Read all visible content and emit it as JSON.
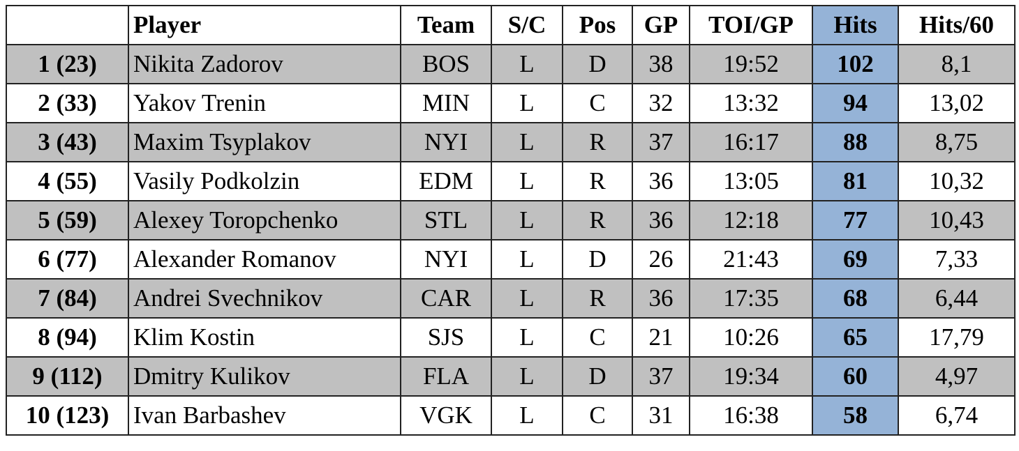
{
  "table": {
    "header": [
      "",
      "Player",
      "Team",
      "S/C",
      "Pos",
      "GP",
      "TOI/GP",
      "Hits",
      "Hits/60"
    ],
    "rows": [
      [
        "1 (23)",
        "Nikita Zadorov",
        "BOS",
        "L",
        "D",
        "38",
        "19:52",
        "102",
        "8,1"
      ],
      [
        "2 (33)",
        "Yakov Trenin",
        "MIN",
        "L",
        "C",
        "32",
        "13:32",
        "94",
        "13,02"
      ],
      [
        "3 (43)",
        "Maxim Tsyplakov",
        "NYI",
        "L",
        "R",
        "37",
        "16:17",
        "88",
        "8,75"
      ],
      [
        "4 (55)",
        "Vasily Podkolzin",
        "EDM",
        "L",
        "R",
        "36",
        "13:05",
        "81",
        "10,32"
      ],
      [
        "5 (59)",
        "Alexey Toropchenko",
        "STL",
        "L",
        "R",
        "36",
        "12:18",
        "77",
        "10,43"
      ],
      [
        "6 (77)",
        "Alexander Romanov",
        "NYI",
        "L",
        "D",
        "26",
        "21:43",
        "69",
        "7,33"
      ],
      [
        "7 (84)",
        "Andrei Svechnikov",
        "CAR",
        "L",
        "R",
        "36",
        "17:35",
        "68",
        "6,44"
      ],
      [
        "8 (94)",
        "Klim Kostin",
        "SJS",
        "L",
        "C",
        "21",
        "10:26",
        "65",
        "17,79"
      ],
      [
        "9 (112)",
        "Dmitry Kulikov",
        "FLA",
        "L",
        "D",
        "37",
        "19:34",
        "60",
        "4,97"
      ],
      [
        "10 (123)",
        "Ivan Barbashev",
        "VGK",
        "L",
        "C",
        "31",
        "16:38",
        "58",
        "6,74"
      ]
    ]
  }
}
